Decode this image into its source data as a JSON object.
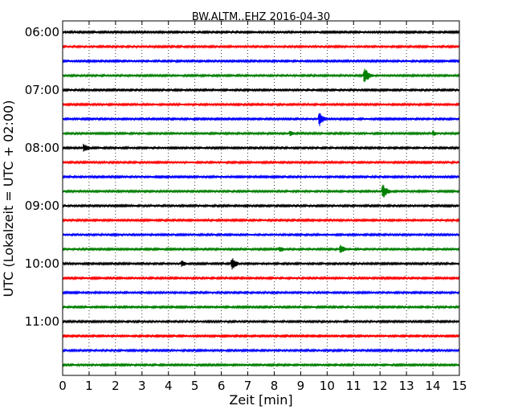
{
  "chart_data": {
    "type": "line",
    "title": "BW.ALTM..EHZ 2016-04-30",
    "xlabel": "Zeit  [min]",
    "ylabel": "UTC (Lokalzeit = UTC + 02:00)",
    "xlim": [
      0,
      15
    ],
    "x_ticks": [
      "0",
      "1",
      "2",
      "3",
      "4",
      "5",
      "6",
      "7",
      "8",
      "9",
      "10",
      "11",
      "12",
      "13",
      "14",
      "15"
    ],
    "y_ticks": [
      {
        "label": "06:00",
        "trace": 0
      },
      {
        "label": "07:00",
        "trace": 4
      },
      {
        "label": "08:00",
        "trace": 8
      },
      {
        "label": "09:00",
        "trace": 12
      },
      {
        "label": "10:00",
        "trace": 16
      },
      {
        "label": "11:00",
        "trace": 20
      }
    ],
    "grid": "vertical dotted",
    "trace_interval_minutes": 15,
    "trace_colors": [
      "#000000",
      "#ff0000",
      "#0000ff",
      "#008000"
    ],
    "traces": [
      {
        "start": "06:00",
        "color": "#000000",
        "events": []
      },
      {
        "start": "06:15",
        "color": "#ff0000",
        "events": []
      },
      {
        "start": "06:30",
        "color": "#0000ff",
        "events": []
      },
      {
        "start": "06:45",
        "color": "#008000",
        "events": [
          {
            "t": 11.4,
            "amp": 12
          }
        ]
      },
      {
        "start": "07:00",
        "color": "#000000",
        "events": []
      },
      {
        "start": "07:15",
        "color": "#ff0000",
        "events": []
      },
      {
        "start": "07:30",
        "color": "#0000ff",
        "events": [
          {
            "t": 9.7,
            "amp": 10
          }
        ]
      },
      {
        "start": "07:45",
        "color": "#008000",
        "events": [
          {
            "t": 8.6,
            "amp": 4
          },
          {
            "t": 14.0,
            "amp": 4
          }
        ]
      },
      {
        "start": "08:00",
        "color": "#000000",
        "events": [
          {
            "t": 0.8,
            "amp": 7
          }
        ]
      },
      {
        "start": "08:15",
        "color": "#ff0000",
        "events": []
      },
      {
        "start": "08:30",
        "color": "#0000ff",
        "events": []
      },
      {
        "start": "08:45",
        "color": "#008000",
        "events": [
          {
            "t": 12.1,
            "amp": 11
          }
        ]
      },
      {
        "start": "09:00",
        "color": "#000000",
        "events": []
      },
      {
        "start": "09:15",
        "color": "#ff0000",
        "events": []
      },
      {
        "start": "09:30",
        "color": "#0000ff",
        "events": []
      },
      {
        "start": "09:45",
        "color": "#008000",
        "events": [
          {
            "t": 8.2,
            "amp": 5
          },
          {
            "t": 10.5,
            "amp": 7
          }
        ]
      },
      {
        "start": "10:00",
        "color": "#000000",
        "events": [
          {
            "t": 4.5,
            "amp": 5
          },
          {
            "t": 6.4,
            "amp": 9
          }
        ]
      },
      {
        "start": "10:15",
        "color": "#ff0000",
        "events": []
      },
      {
        "start": "10:30",
        "color": "#0000ff",
        "events": []
      },
      {
        "start": "10:45",
        "color": "#008000",
        "events": []
      },
      {
        "start": "11:00",
        "color": "#000000",
        "events": []
      },
      {
        "start": "11:15",
        "color": "#ff0000",
        "events": []
      },
      {
        "start": "11:30",
        "color": "#0000ff",
        "events": []
      },
      {
        "start": "11:45",
        "color": "#008000",
        "events": []
      }
    ]
  }
}
